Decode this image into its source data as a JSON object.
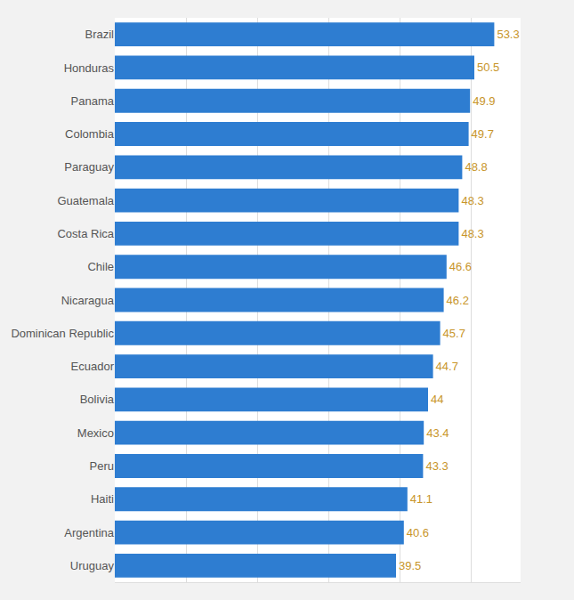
{
  "chart_data": {
    "type": "bar",
    "orientation": "horizontal",
    "categories": [
      "Brazil",
      "Honduras",
      "Panama",
      "Colombia",
      "Paraguay",
      "Guatemala",
      "Costa Rica",
      "Chile",
      "Nicaragua",
      "Dominican Republic",
      "Ecuador",
      "Bolivia",
      "Mexico",
      "Peru",
      "Haiti",
      "Argentina",
      "Uruguay"
    ],
    "values": [
      53.3,
      50.5,
      49.9,
      49.7,
      48.8,
      48.3,
      48.3,
      46.6,
      46.2,
      45.7,
      44.7,
      44.0,
      43.4,
      43.3,
      41.1,
      40.6,
      39.5
    ],
    "color": "#2e7dd1",
    "xlim": [
      0,
      57
    ],
    "xticks": [
      0,
      10,
      20,
      30,
      40,
      50
    ],
    "grid": true,
    "data_labels": true,
    "tick_labels": "y"
  }
}
